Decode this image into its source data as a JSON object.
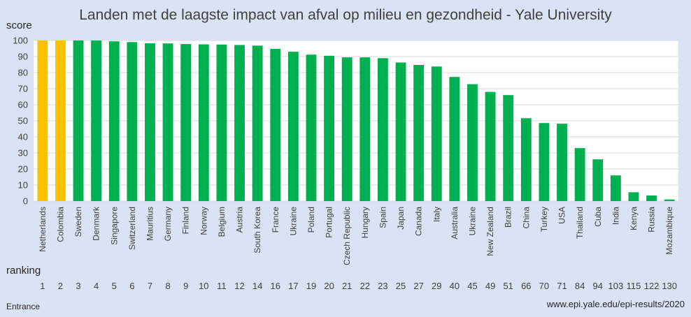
{
  "chart_data": {
    "type": "bar",
    "title": "Landen met de laagste impact van afval op milieu en gezondheid - Yale University",
    "ylabel": "score",
    "ranking_label": "ranking",
    "ylim": [
      0,
      100
    ],
    "yticks": [
      0,
      10,
      20,
      30,
      40,
      50,
      60,
      70,
      80,
      90,
      100
    ],
    "grid": true,
    "categories": [
      "Netherlands",
      "Colombia",
      "Sweden",
      "Denmark",
      "Singapore",
      "Switzerland",
      "Mauritius",
      "Germany",
      "Finland",
      "Norway",
      "Belgium",
      "Austria",
      "South Korea",
      "France",
      "Ukraine",
      "Poland",
      "Portugal",
      "Czech Republic",
      "Hungary",
      "Spain",
      "Japan",
      "Canada",
      "Italy",
      "Australia",
      "Ukraine",
      "New Zealand",
      "Brazil",
      "China",
      "Turkey",
      "USA",
      "Thailand",
      "Cuba",
      "India",
      "Kenya",
      "Russia",
      "Mozambique"
    ],
    "values": [
      100,
      100,
      100,
      100,
      99.5,
      99,
      98.3,
      98.2,
      97.8,
      97.6,
      97.5,
      97.2,
      96.8,
      94.8,
      93,
      91.2,
      90.5,
      89.5,
      89.5,
      89,
      86.3,
      84.8,
      83.8,
      77.3,
      72.8,
      68,
      66,
      51.6,
      48.6,
      48.2,
      33,
      26,
      16,
      5.5,
      3.5,
      1
    ],
    "ranking": [
      "1",
      "2",
      "3",
      "4",
      "5",
      "6",
      "7",
      "8",
      "9",
      "10",
      "11",
      "12",
      "14",
      "16",
      "17",
      "19",
      "20",
      "21",
      "22",
      "23",
      "25",
      "27",
      "29",
      "40",
      "45",
      "49",
      "51",
      "66",
      "70",
      "71",
      "84",
      "94",
      "103",
      "115",
      "122",
      "130"
    ],
    "colors": {
      "highlight": "#ffc000",
      "default": "#00b050"
    },
    "highlight_count": 2
  },
  "footer": {
    "left": "Entrance",
    "right": "www.epi.yale.edu/epi-results/2020"
  }
}
